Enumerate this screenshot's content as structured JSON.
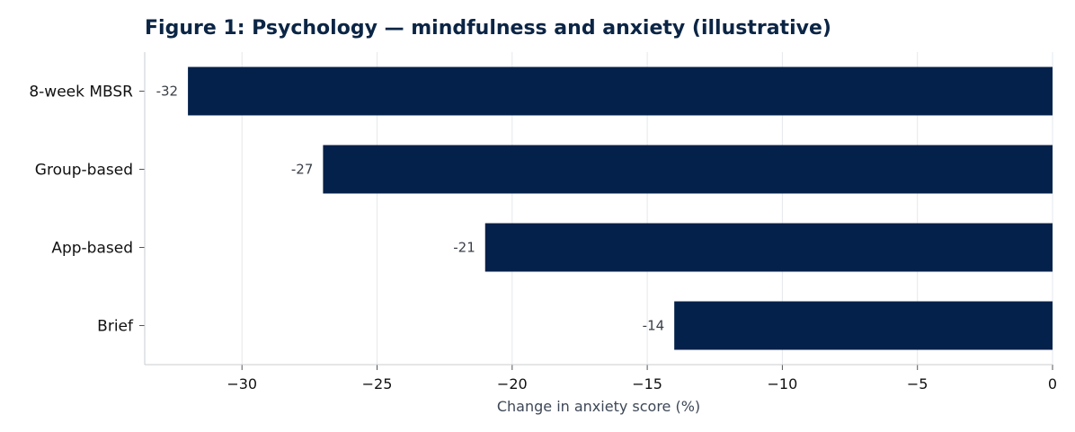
{
  "chart_data": {
    "type": "bar",
    "orientation": "horizontal",
    "title": "Figure 1: Psychology — mindfulness and anxiety (illustrative)",
    "xlabel": "Change in anxiety score (%)",
    "ylabel": "",
    "categories": [
      "8-week MBSR",
      "Group-based",
      "App-based",
      "Brief"
    ],
    "values": [
      -32,
      -27,
      -21,
      -14
    ],
    "data_labels": [
      "-32",
      "-27",
      "-21",
      "-14"
    ],
    "xlim": [
      -33.6,
      0
    ],
    "x_ticks": [
      -30,
      -25,
      -20,
      -15,
      -10,
      -5,
      0
    ],
    "x_tick_labels": [
      "−30",
      "−25",
      "−20",
      "−15",
      "−10",
      "−5",
      "0"
    ],
    "grid": "vertical",
    "bar_color": "#03214a",
    "title_color": "#0b2545"
  }
}
